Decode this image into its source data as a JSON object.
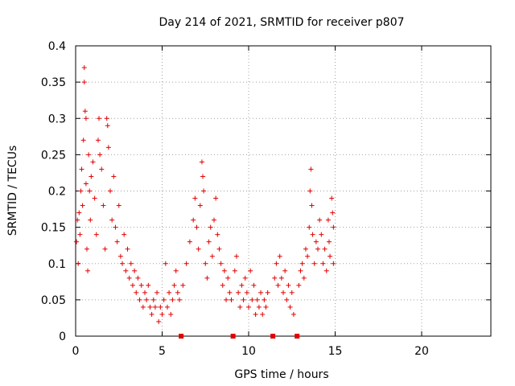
{
  "chart_data": {
    "type": "scatter",
    "title": "Day 214 of 2021, SRMTID for receiver p807",
    "xlabel": "GPS time / hours",
    "ylabel": "SRMTID / TECUs",
    "xlim": [
      0,
      24
    ],
    "ylim": [
      0,
      0.4
    ],
    "x_ticks": [
      0,
      5,
      10,
      15,
      20
    ],
    "x_tick_labels": [
      "0",
      "5",
      "10",
      "15",
      "20"
    ],
    "y_ticks": [
      0,
      0.05,
      0.1,
      0.15,
      0.2,
      0.25,
      0.3,
      0.35,
      0.4
    ],
    "y_tick_labels": [
      "0",
      "0.05",
      "0.1",
      "0.15",
      "0.2",
      "0.25",
      "0.3",
      "0.35",
      "0.4"
    ],
    "grid": true,
    "marker": "plus",
    "series_color": "#e00000",
    "zero_markers_x": [
      6.1,
      9.1,
      11.4,
      12.8
    ],
    "series": [
      {
        "name": "SRMTID",
        "points": [
          [
            0.05,
            0.13
          ],
          [
            0.1,
            0.16
          ],
          [
            0.15,
            0.1
          ],
          [
            0.2,
            0.17
          ],
          [
            0.25,
            0.14
          ],
          [
            0.3,
            0.2
          ],
          [
            0.35,
            0.23
          ],
          [
            0.4,
            0.18
          ],
          [
            0.45,
            0.27
          ],
          [
            0.5,
            0.37
          ],
          [
            0.5,
            0.35
          ],
          [
            0.55,
            0.31
          ],
          [
            0.6,
            0.3
          ],
          [
            0.6,
            0.21
          ],
          [
            0.65,
            0.12
          ],
          [
            0.7,
            0.09
          ],
          [
            0.75,
            0.25
          ],
          [
            0.8,
            0.2
          ],
          [
            0.85,
            0.16
          ],
          [
            0.9,
            0.22
          ],
          [
            1.0,
            0.24
          ],
          [
            1.1,
            0.19
          ],
          [
            1.2,
            0.14
          ],
          [
            1.3,
            0.27
          ],
          [
            1.35,
            0.3
          ],
          [
            1.4,
            0.25
          ],
          [
            1.5,
            0.23
          ],
          [
            1.6,
            0.18
          ],
          [
            1.7,
            0.12
          ],
          [
            1.8,
            0.3
          ],
          [
            1.85,
            0.29
          ],
          [
            1.9,
            0.26
          ],
          [
            2.0,
            0.2
          ],
          [
            2.1,
            0.16
          ],
          [
            2.2,
            0.22
          ],
          [
            2.3,
            0.15
          ],
          [
            2.4,
            0.13
          ],
          [
            2.5,
            0.18
          ],
          [
            2.6,
            0.11
          ],
          [
            2.7,
            0.1
          ],
          [
            2.8,
            0.14
          ],
          [
            2.9,
            0.09
          ],
          [
            3.0,
            0.12
          ],
          [
            3.1,
            0.08
          ],
          [
            3.2,
            0.1
          ],
          [
            3.3,
            0.07
          ],
          [
            3.4,
            0.09
          ],
          [
            3.5,
            0.06
          ],
          [
            3.6,
            0.08
          ],
          [
            3.7,
            0.05
          ],
          [
            3.8,
            0.07
          ],
          [
            3.9,
            0.04
          ],
          [
            4.0,
            0.06
          ],
          [
            4.1,
            0.05
          ],
          [
            4.2,
            0.07
          ],
          [
            4.3,
            0.04
          ],
          [
            4.4,
            0.03
          ],
          [
            4.5,
            0.05
          ],
          [
            4.6,
            0.04
          ],
          [
            4.7,
            0.06
          ],
          [
            4.8,
            0.02
          ],
          [
            4.9,
            0.04
          ],
          [
            5.0,
            0.03
          ],
          [
            5.1,
            0.05
          ],
          [
            5.2,
            0.1
          ],
          [
            5.3,
            0.04
          ],
          [
            5.4,
            0.06
          ],
          [
            5.5,
            0.03
          ],
          [
            5.6,
            0.05
          ],
          [
            5.7,
            0.07
          ],
          [
            5.8,
            0.09
          ],
          [
            5.9,
            0.06
          ],
          [
            6.0,
            0.05
          ],
          [
            6.2,
            0.07
          ],
          [
            6.4,
            0.1
          ],
          [
            6.6,
            0.13
          ],
          [
            6.8,
            0.16
          ],
          [
            6.9,
            0.19
          ],
          [
            7.0,
            0.15
          ],
          [
            7.1,
            0.12
          ],
          [
            7.2,
            0.18
          ],
          [
            7.3,
            0.24
          ],
          [
            7.35,
            0.22
          ],
          [
            7.4,
            0.2
          ],
          [
            7.5,
            0.1
          ],
          [
            7.6,
            0.08
          ],
          [
            7.7,
            0.13
          ],
          [
            7.8,
            0.15
          ],
          [
            7.9,
            0.11
          ],
          [
            8.0,
            0.16
          ],
          [
            8.1,
            0.19
          ],
          [
            8.2,
            0.14
          ],
          [
            8.3,
            0.12
          ],
          [
            8.4,
            0.1
          ],
          [
            8.5,
            0.07
          ],
          [
            8.6,
            0.09
          ],
          [
            8.7,
            0.05
          ],
          [
            8.8,
            0.08
          ],
          [
            8.9,
            0.06
          ],
          [
            9.0,
            0.05
          ],
          [
            9.2,
            0.09
          ],
          [
            9.3,
            0.11
          ],
          [
            9.4,
            0.06
          ],
          [
            9.5,
            0.04
          ],
          [
            9.6,
            0.07
          ],
          [
            9.7,
            0.05
          ],
          [
            9.8,
            0.08
          ],
          [
            9.9,
            0.06
          ],
          [
            10.0,
            0.04
          ],
          [
            10.1,
            0.09
          ],
          [
            10.2,
            0.05
          ],
          [
            10.3,
            0.07
          ],
          [
            10.4,
            0.03
          ],
          [
            10.5,
            0.05
          ],
          [
            10.6,
            0.04
          ],
          [
            10.7,
            0.06
          ],
          [
            10.8,
            0.03
          ],
          [
            10.9,
            0.05
          ],
          [
            11.0,
            0.04
          ],
          [
            11.1,
            0.06
          ],
          [
            11.5,
            0.08
          ],
          [
            11.6,
            0.1
          ],
          [
            11.7,
            0.07
          ],
          [
            11.8,
            0.11
          ],
          [
            11.9,
            0.08
          ],
          [
            12.0,
            0.06
          ],
          [
            12.1,
            0.09
          ],
          [
            12.2,
            0.05
          ],
          [
            12.3,
            0.07
          ],
          [
            12.4,
            0.04
          ],
          [
            12.5,
            0.06
          ],
          [
            12.6,
            0.03
          ],
          [
            12.9,
            0.07
          ],
          [
            13.0,
            0.09
          ],
          [
            13.1,
            0.1
          ],
          [
            13.2,
            0.08
          ],
          [
            13.3,
            0.12
          ],
          [
            13.4,
            0.11
          ],
          [
            13.5,
            0.15
          ],
          [
            13.55,
            0.2
          ],
          [
            13.6,
            0.23
          ],
          [
            13.65,
            0.18
          ],
          [
            13.7,
            0.14
          ],
          [
            13.8,
            0.1
          ],
          [
            13.9,
            0.13
          ],
          [
            14.0,
            0.12
          ],
          [
            14.1,
            0.16
          ],
          [
            14.2,
            0.14
          ],
          [
            14.3,
            0.1
          ],
          [
            14.4,
            0.12
          ],
          [
            14.5,
            0.09
          ],
          [
            14.6,
            0.16
          ],
          [
            14.65,
            0.13
          ],
          [
            14.7,
            0.11
          ],
          [
            14.8,
            0.19
          ],
          [
            14.85,
            0.17
          ],
          [
            14.9,
            0.15
          ],
          [
            14.9,
            0.1
          ]
        ]
      }
    ]
  }
}
